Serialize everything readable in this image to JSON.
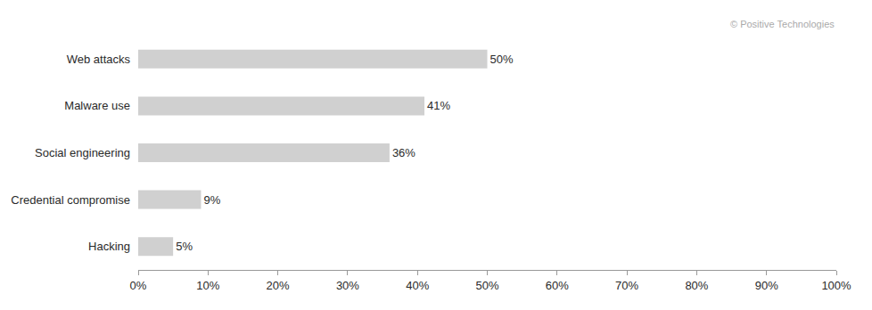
{
  "chart_data": {
    "type": "bar",
    "orientation": "horizontal",
    "categories": [
      "Web attacks",
      "Malware use",
      "Social engineering",
      "Credential compromise",
      "Hacking"
    ],
    "values": [
      50,
      41,
      36,
      9,
      5
    ],
    "value_labels": [
      "50%",
      "41%",
      "36%",
      "9%",
      "5%"
    ],
    "data_labels": true,
    "color": "#d0d0d0",
    "xlim": [
      0,
      100
    ],
    "xticks": [
      {
        "value": 0,
        "label": "0%"
      },
      {
        "value": 10,
        "label": "10%"
      },
      {
        "value": 20,
        "label": "20%"
      },
      {
        "value": 30,
        "label": "30%"
      },
      {
        "value": 40,
        "label": "40%"
      },
      {
        "value": 50,
        "label": "50%"
      },
      {
        "value": 60,
        "label": "60%"
      },
      {
        "value": 70,
        "label": "70%"
      },
      {
        "value": 80,
        "label": "80%"
      },
      {
        "value": 90,
        "label": "90%"
      },
      {
        "value": 100,
        "label": "100%"
      }
    ],
    "grid": false,
    "annotations": [
      "© Positive Technologies"
    ]
  }
}
